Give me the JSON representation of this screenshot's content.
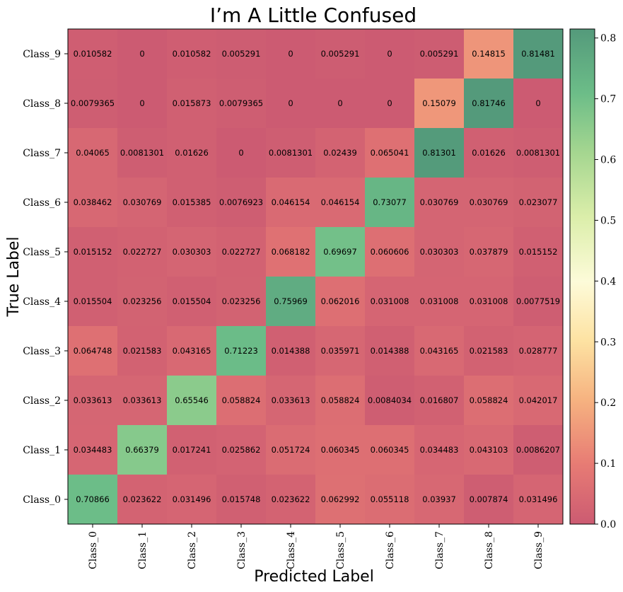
{
  "chart_data": {
    "type": "heatmap",
    "title": "I’m A Little Confused",
    "xlabel": "Predicted Label",
    "ylabel": "True Label",
    "x_categories": [
      "Class_0",
      "Class_1",
      "Class_2",
      "Class_3",
      "Class_4",
      "Class_5",
      "Class_6",
      "Class_7",
      "Class_8",
      "Class_9"
    ],
    "y_categories": [
      "Class_9",
      "Class_8",
      "Class_7",
      "Class_6",
      "Class_5",
      "Class_4",
      "Class_3",
      "Class_2",
      "Class_1",
      "Class_0"
    ],
    "values": [
      [
        "0.010582",
        "0",
        "0.010582",
        "0.005291",
        "0",
        "0.005291",
        "0",
        "0.005291",
        "0.14815",
        "0.81481"
      ],
      [
        "0.0079365",
        "0",
        "0.015873",
        "0.0079365",
        "0",
        "0",
        "0",
        "0.15079",
        "0.81746",
        "0"
      ],
      [
        "0.04065",
        "0.0081301",
        "0.01626",
        "0",
        "0.0081301",
        "0.02439",
        "0.065041",
        "0.81301",
        "0.01626",
        "0.0081301"
      ],
      [
        "0.038462",
        "0.030769",
        "0.015385",
        "0.0076923",
        "0.046154",
        "0.046154",
        "0.73077",
        "0.030769",
        "0.030769",
        "0.023077"
      ],
      [
        "0.015152",
        "0.022727",
        "0.030303",
        "0.022727",
        "0.068182",
        "0.69697",
        "0.060606",
        "0.030303",
        "0.037879",
        "0.015152"
      ],
      [
        "0.015504",
        "0.023256",
        "0.015504",
        "0.023256",
        "0.75969",
        "0.062016",
        "0.031008",
        "0.031008",
        "0.031008",
        "0.0077519"
      ],
      [
        "0.064748",
        "0.021583",
        "0.043165",
        "0.71223",
        "0.014388",
        "0.035971",
        "0.014388",
        "0.043165",
        "0.021583",
        "0.028777"
      ],
      [
        "0.033613",
        "0.033613",
        "0.65546",
        "0.058824",
        "0.033613",
        "0.058824",
        "0.0084034",
        "0.016807",
        "0.058824",
        "0.042017"
      ],
      [
        "0.034483",
        "0.66379",
        "0.017241",
        "0.025862",
        "0.051724",
        "0.060345",
        "0.060345",
        "0.034483",
        "0.043103",
        "0.0086207"
      ],
      [
        "0.70866",
        "0.023622",
        "0.031496",
        "0.015748",
        "0.023622",
        "0.062992",
        "0.055118",
        "0.03937",
        "0.007874",
        "0.031496"
      ]
    ],
    "colorbar": {
      "range": [
        0.0,
        0.8148
      ],
      "ticks": [
        "0.0",
        "0.1",
        "0.2",
        "0.3",
        "0.4",
        "0.5",
        "0.6",
        "0.7",
        "0.8"
      ],
      "colormap": "RdYlGn-like (alpha 0.7)"
    }
  },
  "colors": {
    "low": "#cc5b72",
    "mid": "#fdfbd9",
    "high": "#549a7b"
  }
}
